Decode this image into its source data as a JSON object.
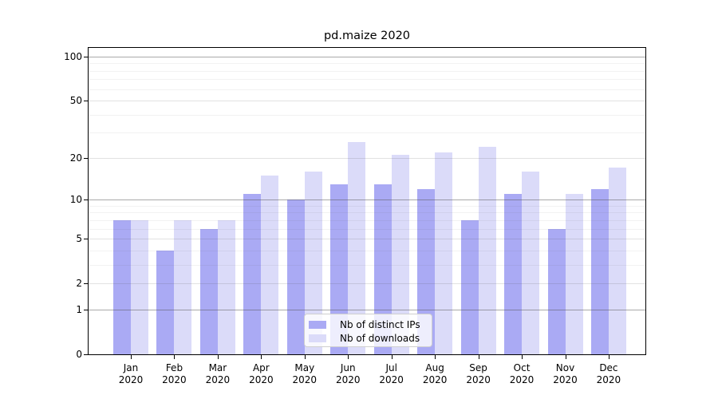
{
  "chart_data": {
    "type": "bar",
    "title": "pd.maize 2020",
    "categories": [
      "Jan 2020",
      "Feb 2020",
      "Mar 2020",
      "Apr 2020",
      "May 2020",
      "Jun 2020",
      "Jul 2020",
      "Aug 2020",
      "Sep 2020",
      "Oct 2020",
      "Nov 2020",
      "Dec 2020"
    ],
    "series": [
      {
        "name": "Nb of distinct IPs",
        "color": "#aaaaf4",
        "values": [
          7,
          4,
          6,
          11,
          10,
          13,
          13,
          12,
          7,
          11,
          6,
          12
        ]
      },
      {
        "name": "Nb of downloads",
        "color": "#dbdbf9",
        "values": [
          7,
          7,
          7,
          15,
          16,
          26,
          21,
          22,
          24,
          16,
          11,
          17
        ]
      }
    ],
    "y_axis": {
      "scale": "log1p",
      "tick_values": [
        0,
        1,
        2,
        5,
        10,
        20,
        50,
        100
      ],
      "major_gridlines": [
        1,
        10,
        100
      ],
      "light_gridlines": [
        2,
        5,
        20,
        50
      ],
      "minor_gridlines": [
        3,
        4,
        6,
        7,
        8,
        9,
        30,
        40,
        60,
        70,
        80,
        90
      ],
      "max": 116
    },
    "xlabel": "",
    "ylabel": "",
    "legend_position": "lower center",
    "grid": true
  }
}
